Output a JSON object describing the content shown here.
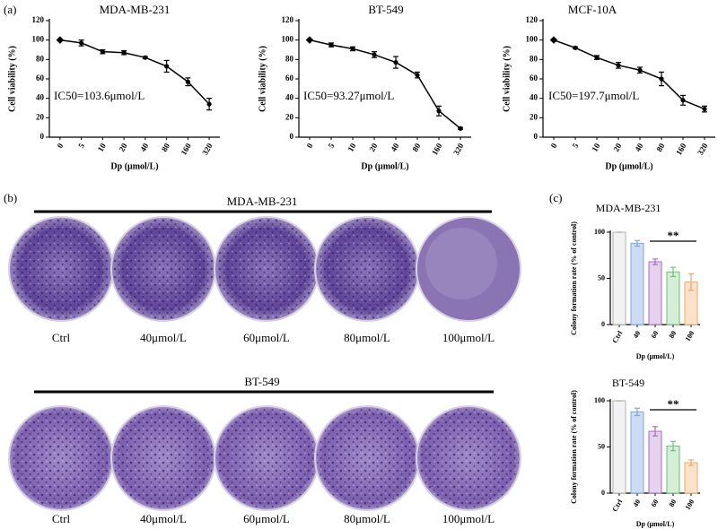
{
  "panel_labels": [
    "(a)",
    "(b)",
    "(c)"
  ],
  "plates": [
    {
      "title": "MDA-MB-231",
      "labels": [
        "Ctrl",
        "40μmol/L",
        "60μmol/L",
        "80μmol/L",
        "100μmol/L"
      ]
    },
    {
      "title": "BT-549",
      "labels": [
        "Ctrl",
        "40μmol/L",
        "60μmol/L",
        "80μmol/L",
        "100μmol/L"
      ]
    }
  ],
  "chart_data": [
    {
      "type": "line",
      "title": "MDA-MB-231",
      "x_label": "Dp (μmol/L)",
      "y_label": "Cell viability (%)",
      "categories": [
        "0",
        "5",
        "10",
        "20",
        "40",
        "80",
        "160",
        "320"
      ],
      "values": [
        100,
        97,
        88,
        87,
        82,
        73,
        57,
        34
      ],
      "errors": [
        0,
        3,
        2,
        2,
        1,
        6,
        4,
        6
      ],
      "color": "#000000",
      "annotation": "IC50=103.6μmol/L",
      "ylim": [
        0,
        120
      ],
      "yticks": [
        0,
        20,
        40,
        60,
        80,
        100,
        120
      ]
    },
    {
      "type": "line",
      "title": "BT-549",
      "x_label": "Dp (μmol/L)",
      "y_label": "Cell viability (%)",
      "categories": [
        "0",
        "5",
        "10",
        "20",
        "40",
        "80",
        "160",
        "320"
      ],
      "values": [
        100,
        95,
        91,
        85,
        77,
        64,
        27,
        9
      ],
      "errors": [
        0,
        2,
        2,
        3,
        6,
        3,
        5,
        1
      ],
      "color": "#000000",
      "annotation": "IC50=93.27μmol/L",
      "ylim": [
        0,
        120
      ],
      "yticks": [
        0,
        20,
        40,
        60,
        80,
        100,
        120
      ]
    },
    {
      "type": "line",
      "title": "MCF-10A",
      "x_label": "Dp (μmol/L)",
      "y_label": "Cell viability (%)",
      "categories": [
        "0",
        "5",
        "10",
        "20",
        "40",
        "80",
        "160",
        "320"
      ],
      "values": [
        100,
        92,
        82,
        74,
        69,
        60,
        38,
        29
      ],
      "errors": [
        0,
        1,
        2,
        3,
        3,
        7,
        5,
        3
      ],
      "color": "#000000",
      "annotation": "IC50=197.7μmol/L",
      "ylim": [
        0,
        120
      ],
      "yticks": [
        0,
        20,
        40,
        60,
        80,
        100,
        120
      ]
    },
    {
      "type": "bar",
      "title": "MDA-MB-231",
      "x_label": "Dp (μmol/L)",
      "y_label": "Colony formation rate (% of control)",
      "categories": [
        "Ctrl",
        "40",
        "60",
        "80",
        "100"
      ],
      "values": [
        100,
        88,
        68,
        57,
        46
      ],
      "errors": [
        0,
        3,
        3,
        5,
        9
      ],
      "colors": [
        "#f2f2f2",
        "#cddcf3",
        "#e6d2ee",
        "#d5eed8",
        "#fbe2cb"
      ],
      "edge_colors": [
        "#b0b0b0",
        "#7fa6dd",
        "#a76bbf",
        "#6fbf78",
        "#f0a868"
      ],
      "annotation": "**",
      "ylim": [
        0,
        100
      ],
      "yticks": [
        0,
        50,
        100
      ]
    },
    {
      "type": "bar",
      "title": "BT-549",
      "x_label": "Dp (μmol/L)",
      "y_label": "Colony formation rate (% of control)",
      "categories": [
        "Ctrl",
        "40",
        "60",
        "80",
        "100"
      ],
      "values": [
        100,
        88,
        67,
        51,
        33
      ],
      "errors": [
        0,
        4,
        5,
        5,
        3
      ],
      "colors": [
        "#f2f2f2",
        "#cddcf3",
        "#e6d2ee",
        "#d5eed8",
        "#fbe2cb"
      ],
      "edge_colors": [
        "#b0b0b0",
        "#7fa6dd",
        "#a76bbf",
        "#6fbf78",
        "#f0a868"
      ],
      "annotation": "**",
      "ylim": [
        0,
        100
      ],
      "yticks": [
        0,
        50,
        100
      ]
    }
  ]
}
